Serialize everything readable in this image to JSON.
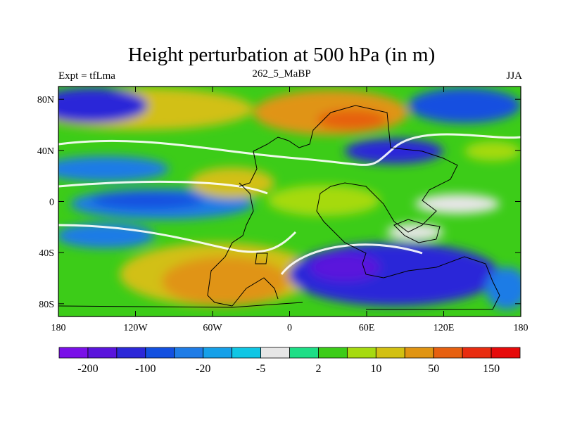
{
  "title": "Height perturbation at 500 hPa (in m)",
  "left_label": "Expt = tfLma",
  "center_label": "262_5_MaBP",
  "right_label": "JJA",
  "map": {
    "projection": "cylindrical-equidistant",
    "lon_range": [
      -180,
      180
    ],
    "lat_range": [
      -90,
      90
    ],
    "lon_ticks": [
      {
        "value": -180,
        "label": "180"
      },
      {
        "value": -120,
        "label": "120W"
      },
      {
        "value": -60,
        "label": "60W"
      },
      {
        "value": 0,
        "label": "0"
      },
      {
        "value": 60,
        "label": "60E"
      },
      {
        "value": 120,
        "label": "120E"
      },
      {
        "value": 180,
        "label": "180"
      }
    ],
    "lat_ticks": [
      {
        "value": 80,
        "label": "80N"
      },
      {
        "value": 40,
        "label": "40N"
      },
      {
        "value": 0,
        "label": "0"
      },
      {
        "value": -40,
        "label": "40S"
      },
      {
        "value": -80,
        "label": "80S"
      }
    ]
  },
  "colorbar": {
    "colors": [
      "#7a10e8",
      "#5a14dc",
      "#2c28d8",
      "#1350e0",
      "#1f7ce6",
      "#16a0e8",
      "#10c6e4",
      "#e6e6e6",
      "#1ede86",
      "#3ccc18",
      "#a6da10",
      "#d2c012",
      "#e09412",
      "#e66010",
      "#e82c10",
      "#e60a0a"
    ],
    "labels": [
      {
        "boundary": 1,
        "text": "-200"
      },
      {
        "boundary": 3,
        "text": "-100"
      },
      {
        "boundary": 5,
        "text": "-20"
      },
      {
        "boundary": 7,
        "text": "-5"
      },
      {
        "boundary": 9,
        "text": "2"
      },
      {
        "boundary": 11,
        "text": "10"
      },
      {
        "boundary": 13,
        "text": "50"
      },
      {
        "boundary": 15,
        "text": "150"
      }
    ]
  },
  "field_regions": [
    {
      "name": "north-atlantic-positive",
      "level": 10,
      "lon": -40,
      "lat": 65,
      "rx": 70,
      "ry": 14
    },
    {
      "name": "eurasia-arctic-positive",
      "level": 13,
      "lon": 40,
      "lat": 70,
      "rx": 40,
      "ry": 12
    },
    {
      "name": "siberia-max",
      "level": 15,
      "lon": 50,
      "lat": 65,
      "rx": 18,
      "ry": 6
    },
    {
      "name": "north-pacific-negative",
      "level": 2,
      "lon": -150,
      "lat": 70,
      "rx": 30,
      "ry": 14
    },
    {
      "name": "north-pacific-subtropic-negative",
      "level": 4,
      "lon": -150,
      "lat": 40,
      "rx": 30,
      "ry": 12
    },
    {
      "name": "east-pacific-tropics-negative",
      "level": 4,
      "lon": -100,
      "lat": 0,
      "rx": 45,
      "ry": 12
    },
    {
      "name": "south-atlantic-positive",
      "level": 13,
      "lon": -40,
      "lat": -55,
      "rx": 60,
      "ry": 25
    },
    {
      "name": "south-pacific-west",
      "level": 3,
      "lon": -155,
      "lat": -35,
      "rx": 25,
      "ry": 10
    },
    {
      "name": "southern-indian-ocean-min",
      "level": 1,
      "lon": 60,
      "lat": -55,
      "rx": 55,
      "ry": 20
    },
    {
      "name": "central-asia-negative",
      "level": 2,
      "lon": 60,
      "lat": 35,
      "rx": 25,
      "ry": 8
    },
    {
      "name": "east-asia-positive",
      "level": 10,
      "lon": 150,
      "lat": 40,
      "rx": 20,
      "ry": 8
    },
    {
      "name": "tropical-indian-positive",
      "level": 9,
      "lon": 80,
      "lat": 0,
      "rx": 40,
      "ry": 14
    }
  ]
}
